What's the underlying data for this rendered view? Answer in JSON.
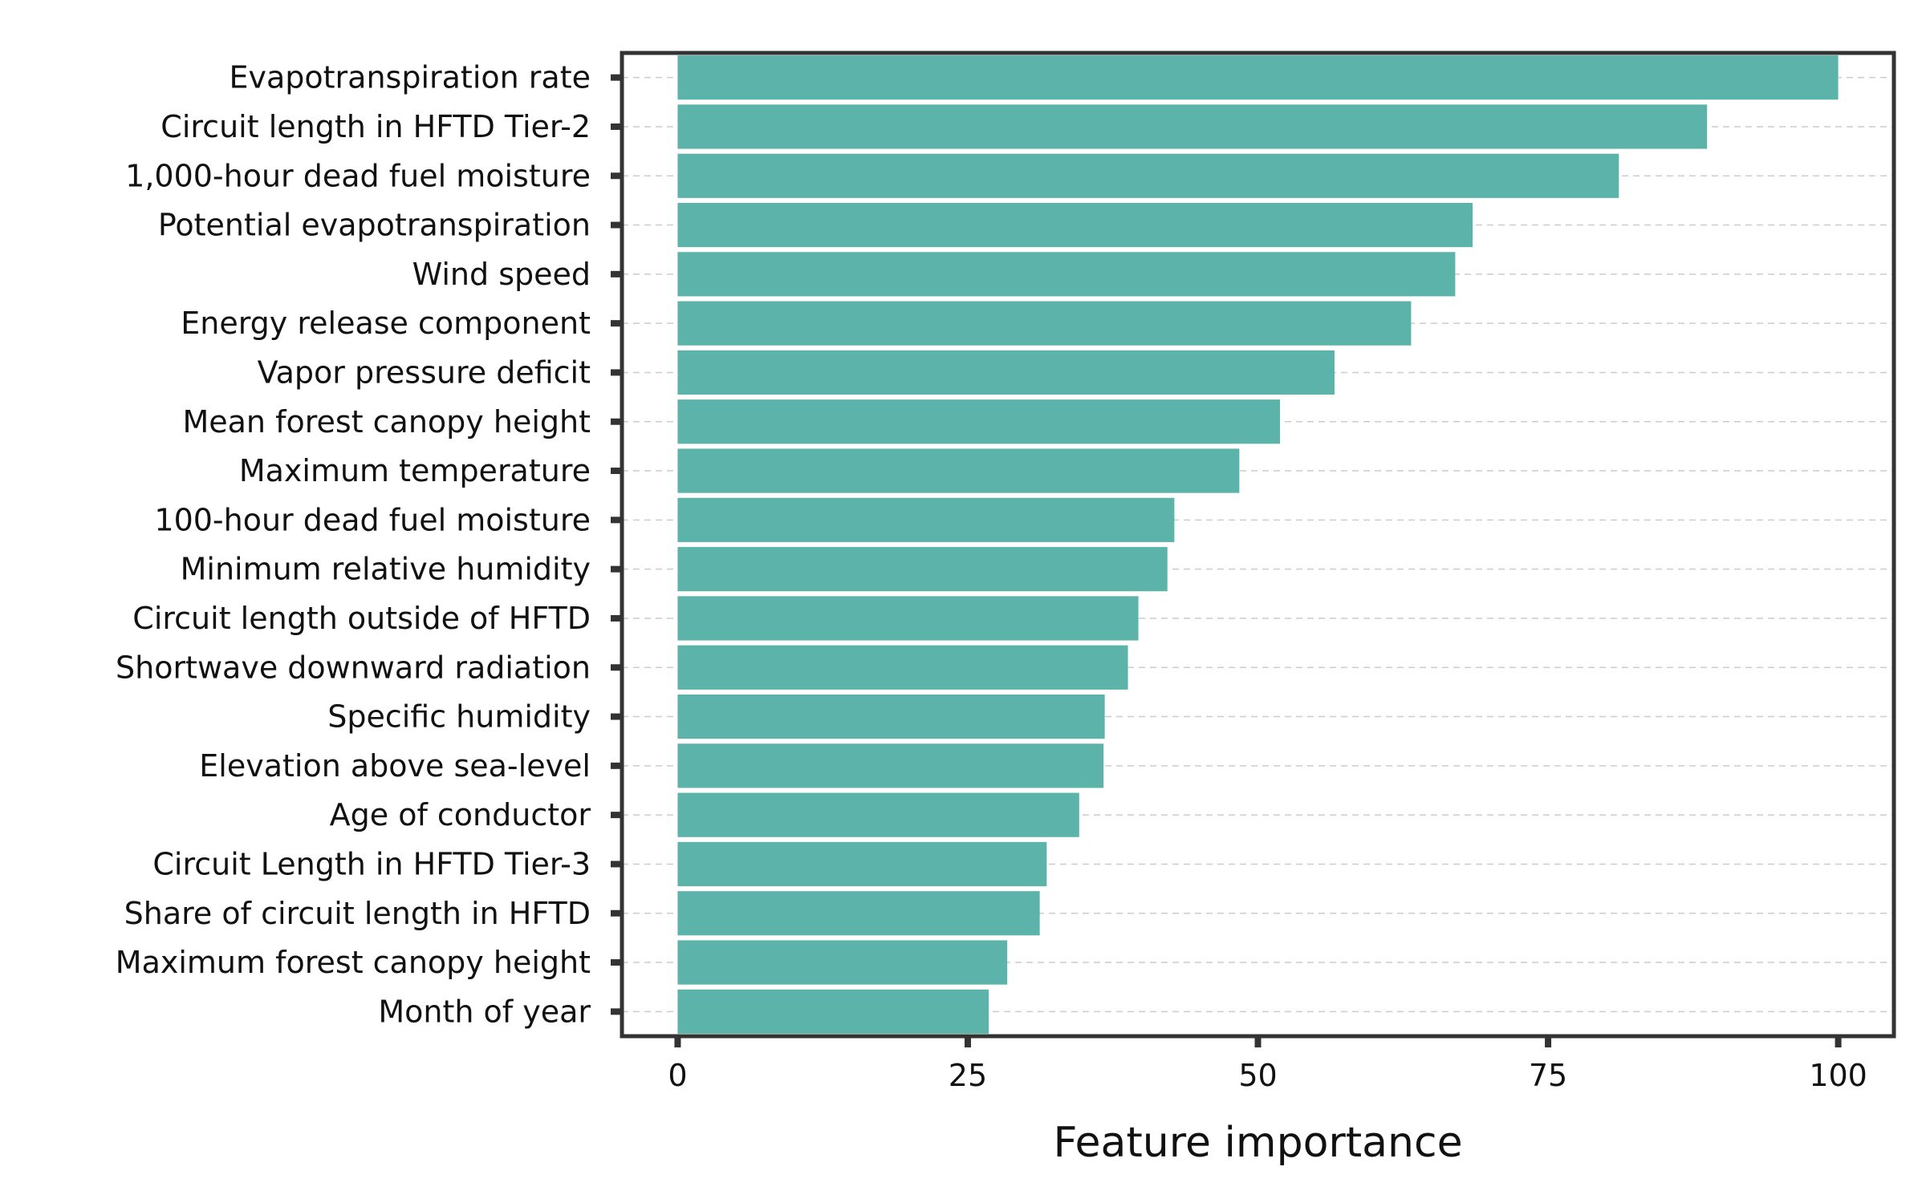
{
  "chart_data": {
    "type": "bar",
    "orientation": "horizontal",
    "categories": [
      "Evapotranspiration rate",
      "Circuit length in HFTD Tier-2",
      "1,000-hour dead fuel moisture",
      "Potential evapotranspiration",
      "Wind speed",
      "Energy release component",
      "Vapor pressure deficit",
      "Mean forest canopy height",
      "Maximum temperature",
      "100-hour dead fuel moisture",
      "Minimum relative humidity",
      "Circuit length outside of HFTD",
      "Shortwave downward radiation",
      "Specific humidity",
      "Elevation above sea-level",
      "Age of conductor",
      "Circuit Length in HFTD Tier-3",
      "Share of circuit length in HFTD",
      "Maximum forest canopy height",
      "Month of year"
    ],
    "values": [
      100,
      88.7,
      81.1,
      68.5,
      67.0,
      63.2,
      56.6,
      51.9,
      48.4,
      42.8,
      42.2,
      39.7,
      38.8,
      36.8,
      36.7,
      34.6,
      31.8,
      31.2,
      28.4,
      26.8
    ],
    "xlabel": "Feature importance",
    "xlim": [
      -4.8,
      104.8
    ],
    "xticks": [
      0,
      25,
      50,
      75,
      100
    ],
    "grid": "horizontal dashed",
    "bar_color": "#5bb3a9",
    "legend": "none"
  }
}
